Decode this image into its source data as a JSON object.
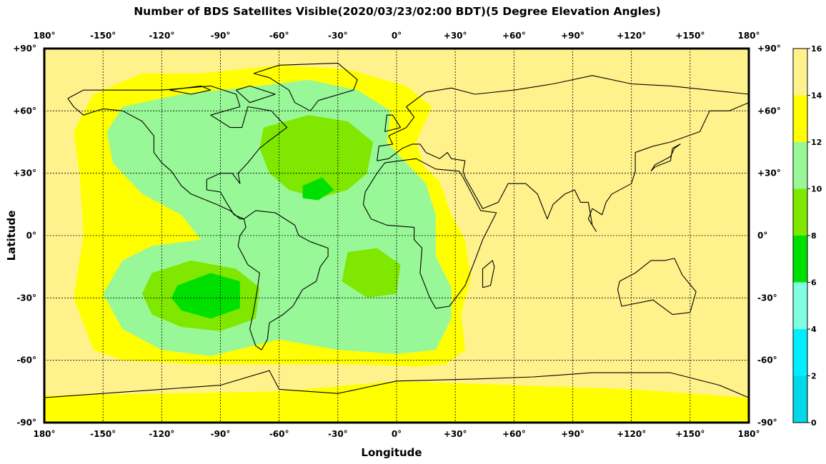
{
  "title": "Number of BDS Satellites Visible(2020/03/23/02:00 BDT)(5 Degree Elevation Angles)",
  "xlabel": "Longitude",
  "ylabel": "Latitude",
  "x_ticks": [
    "180°",
    "-150°",
    "-120°",
    "-90°",
    "-60°",
    "-30°",
    "0°",
    "+30°",
    "+60°",
    "+90°",
    "+120°",
    "+150°",
    "180°"
  ],
  "y_ticks": [
    "+90°",
    "+60°",
    "+30°",
    "0°",
    "-30°",
    "-60°",
    "-90°"
  ],
  "colorbar": {
    "ticks": [
      "16",
      "14",
      "12",
      "10",
      "8",
      "6",
      "4",
      "2",
      "0"
    ],
    "bins": [
      {
        "from": 0,
        "to": 2,
        "color": "#00d8e8"
      },
      {
        "from": 2,
        "to": 4,
        "color": "#00eeff"
      },
      {
        "from": 4,
        "to": 6,
        "color": "#80ffe0"
      },
      {
        "from": 6,
        "to": 8,
        "color": "#00e000"
      },
      {
        "from": 8,
        "to": 10,
        "color": "#80e800"
      },
      {
        "from": 10,
        "to": 12,
        "color": "#98f898"
      },
      {
        "from": 12,
        "to": 14,
        "color": "#ffff00"
      },
      {
        "from": 14,
        "to": 16,
        "color": "#fff28c"
      }
    ]
  },
  "map_data": {
    "projection": "equirectangular",
    "lon_range": [
      -180,
      180
    ],
    "lat_range": [
      -90,
      90
    ],
    "grid_step_deg": 30,
    "background_level": "14-16",
    "regions": [
      {
        "level": "12-14",
        "desc": "yellow ring around Atlantic / Americas region and southern ocean band",
        "poly": [
          [
            -155,
            68
          ],
          [
            -130,
            78
          ],
          [
            -100,
            78
          ],
          [
            -60,
            82
          ],
          [
            -25,
            80
          ],
          [
            5,
            72
          ],
          [
            18,
            62
          ],
          [
            10,
            45
          ],
          [
            14,
            33
          ],
          [
            22,
            26
          ],
          [
            28,
            10
          ],
          [
            35,
            -2
          ],
          [
            38,
            -20
          ],
          [
            33,
            -38
          ],
          [
            35,
            -55
          ],
          [
            25,
            -62
          ],
          [
            10,
            -63
          ],
          [
            -20,
            -62
          ],
          [
            -60,
            -62
          ],
          [
            -100,
            -62
          ],
          [
            -140,
            -60
          ],
          [
            -155,
            -55
          ],
          [
            -165,
            -30
          ],
          [
            -160,
            0
          ],
          [
            -162,
            30
          ],
          [
            -165,
            50
          ]
        ]
      },
      {
        "level": "12-14",
        "desc": "antarctic band",
        "poly": [
          [
            -180,
            -77
          ],
          [
            -60,
            -75
          ],
          [
            0,
            -70
          ],
          [
            60,
            -72
          ],
          [
            120,
            -74
          ],
          [
            180,
            -78
          ],
          [
            180,
            -90
          ],
          [
            -180,
            -90
          ]
        ]
      },
      {
        "level": "10-12",
        "desc": "light green Atlantic / Americas region",
        "poly": [
          [
            -140,
            62
          ],
          [
            -110,
            68
          ],
          [
            -70,
            72
          ],
          [
            -45,
            75
          ],
          [
            -20,
            70
          ],
          [
            -3,
            60
          ],
          [
            -5,
            45
          ],
          [
            5,
            35
          ],
          [
            15,
            25
          ],
          [
            20,
            10
          ],
          [
            20,
            -10
          ],
          [
            28,
            -25
          ],
          [
            28,
            -40
          ],
          [
            20,
            -55
          ],
          [
            0,
            -57
          ],
          [
            -30,
            -55
          ],
          [
            -60,
            -50
          ],
          [
            -95,
            -58
          ],
          [
            -120,
            -55
          ],
          [
            -140,
            -45
          ],
          [
            -150,
            -28
          ],
          [
            -140,
            -12
          ],
          [
            -125,
            -5
          ],
          [
            -100,
            -2
          ],
          [
            -110,
            10
          ],
          [
            -130,
            20
          ],
          [
            -145,
            35
          ],
          [
            -148,
            50
          ]
        ]
      },
      {
        "level": "8-10",
        "desc": "north Atlantic core",
        "poly": [
          [
            -68,
            52
          ],
          [
            -45,
            58
          ],
          [
            -25,
            55
          ],
          [
            -12,
            45
          ],
          [
            -15,
            30
          ],
          [
            -25,
            22
          ],
          [
            -40,
            18
          ],
          [
            -55,
            22
          ],
          [
            -65,
            30
          ],
          [
            -70,
            42
          ]
        ]
      },
      {
        "level": "8-10",
        "desc": "south Pacific core",
        "poly": [
          [
            -125,
            -18
          ],
          [
            -105,
            -12
          ],
          [
            -82,
            -16
          ],
          [
            -70,
            -25
          ],
          [
            -72,
            -40
          ],
          [
            -90,
            -46
          ],
          [
            -110,
            -44
          ],
          [
            -125,
            -38
          ],
          [
            -130,
            -28
          ]
        ]
      },
      {
        "level": "8-10",
        "desc": "small south Atlantic patches",
        "poly": [
          [
            -25,
            -8
          ],
          [
            -10,
            -6
          ],
          [
            2,
            -14
          ],
          [
            0,
            -28
          ],
          [
            -15,
            -30
          ],
          [
            -28,
            -22
          ]
        ]
      },
      {
        "level": "6-8",
        "desc": "south Pacific deep core",
        "poly": [
          [
            -112,
            -24
          ],
          [
            -95,
            -18
          ],
          [
            -80,
            -22
          ],
          [
            -80,
            -35
          ],
          [
            -95,
            -40
          ],
          [
            -110,
            -36
          ],
          [
            -115,
            -30
          ]
        ]
      },
      {
        "level": "6-8",
        "desc": "north Atlantic deep core",
        "poly": [
          [
            -48,
            24
          ],
          [
            -38,
            28
          ],
          [
            -32,
            22
          ],
          [
            -40,
            17
          ],
          [
            -48,
            18
          ]
        ]
      }
    ]
  }
}
